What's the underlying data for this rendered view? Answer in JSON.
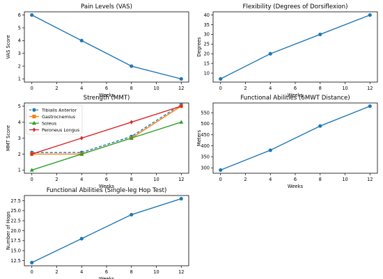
{
  "chart_data": [
    {
      "type": "line",
      "title": "Pain Levels (VAS)",
      "xlabel": "Weeks",
      "ylabel": "VAS Score",
      "x": [
        0,
        4,
        8,
        12
      ],
      "xticks": [
        0,
        2,
        4,
        6,
        8,
        10,
        12
      ],
      "yticks": [
        1,
        2,
        3,
        4,
        5,
        6
      ],
      "xlim": [
        -0.6,
        12.6
      ],
      "ylim": [
        0.75,
        6.25
      ],
      "grid": false,
      "series": [
        {
          "values": [
            6,
            4,
            2,
            1
          ],
          "color": "#1f77b4",
          "marker": "circle",
          "linestyle": "solid"
        }
      ]
    },
    {
      "type": "line",
      "title": "Flexibility (Degrees of Dorsiflexion)",
      "xlabel": "Weeks",
      "ylabel": "Degrees",
      "x": [
        0,
        4,
        8,
        12
      ],
      "xticks": [
        0,
        2,
        4,
        6,
        8,
        10,
        12
      ],
      "yticks": [
        10,
        15,
        20,
        25,
        30,
        35,
        40
      ],
      "xlim": [
        -0.6,
        12.6
      ],
      "ylim": [
        5.35,
        41.65
      ],
      "grid": false,
      "series": [
        {
          "values": [
            7,
            20,
            30,
            40
          ],
          "color": "#1f77b4",
          "marker": "circle",
          "linestyle": "solid"
        }
      ]
    },
    {
      "type": "line",
      "title": "Strength (MMT)",
      "xlabel": "Weeks",
      "ylabel": "MMT Score",
      "x": [
        0,
        4,
        8,
        12
      ],
      "xticks": [
        0,
        2,
        4,
        6,
        8,
        10,
        12
      ],
      "yticks": [
        1,
        2,
        3,
        4,
        5
      ],
      "xlim": [
        -0.6,
        12.6
      ],
      "ylim": [
        0.8,
        5.2
      ],
      "grid": false,
      "legend": "top-left",
      "series": [
        {
          "name": "Tibialis Anterior",
          "values": [
            2.1,
            2.1,
            3.1,
            5.1
          ],
          "color": "#1f77b4",
          "marker": "circle",
          "linestyle": "dashed"
        },
        {
          "name": "Gastrocnemius",
          "values": [
            2,
            2,
            3,
            5
          ],
          "color": "#ff7f0e",
          "marker": "square",
          "linestyle": "solid"
        },
        {
          "name": "Soleus",
          "values": [
            1,
            2,
            3,
            4
          ],
          "color": "#2ca02c",
          "marker": "triangle",
          "linestyle": "solid"
        },
        {
          "name": "Peroneus Longus",
          "values": [
            2,
            3,
            4,
            5
          ],
          "color": "#d62728",
          "marker": "diamond",
          "linestyle": "solid"
        }
      ]
    },
    {
      "type": "line",
      "title": "Functional Abilities (6MWT Distance)",
      "xlabel": "Weeks",
      "ylabel": "Meters",
      "x": [
        0,
        4,
        8,
        12
      ],
      "xticks": [
        0,
        2,
        4,
        6,
        8,
        10,
        12
      ],
      "yticks": [
        300,
        350,
        400,
        450,
        500,
        550
      ],
      "xlim": [
        -0.6,
        12.6
      ],
      "ylim": [
        275.5,
        594.5
      ],
      "grid": false,
      "series": [
        {
          "values": [
            290,
            380,
            490,
            580
          ],
          "color": "#1f77b4",
          "marker": "circle",
          "linestyle": "solid"
        }
      ]
    },
    {
      "type": "line",
      "title": "Functional Abilities (Single-leg Hop Test)",
      "xlabel": "Weeks",
      "ylabel": "Number of Hops",
      "x": [
        0,
        4,
        8,
        12
      ],
      "xticks": [
        0,
        2,
        4,
        6,
        8,
        10,
        12
      ],
      "yticks": [
        12.5,
        15.0,
        17.5,
        20.0,
        22.5,
        25.0,
        27.5
      ],
      "xlim": [
        -0.6,
        12.6
      ],
      "ylim": [
        11.2,
        28.8
      ],
      "grid": false,
      "series": [
        {
          "values": [
            12,
            18,
            24,
            28
          ],
          "color": "#1f77b4",
          "marker": "circle",
          "linestyle": "solid"
        }
      ]
    }
  ]
}
